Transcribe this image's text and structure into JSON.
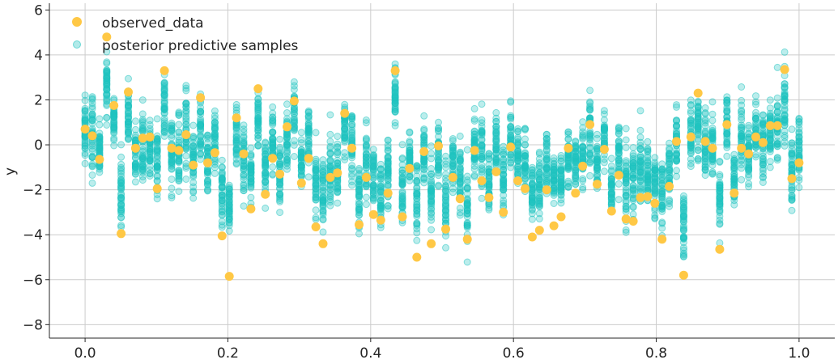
{
  "chart_data": {
    "type": "scatter",
    "title": "",
    "xlabel": "",
    "ylabel": "y",
    "xlim": [
      -0.05,
      1.05
    ],
    "ylim": [
      -8.6,
      6.3
    ],
    "xticks": [
      0.0,
      0.2,
      0.4,
      0.6,
      0.8,
      1.0
    ],
    "xtick_labels": [
      "0.0",
      "0.2",
      "0.4",
      "0.6",
      "0.8",
      "1.0"
    ],
    "yticks": [
      -8,
      -6,
      -4,
      -2,
      0,
      2,
      4,
      6
    ],
    "ytick_labels": [
      "−8",
      "−6",
      "−4",
      "−2",
      "0",
      "2",
      "4",
      "6"
    ],
    "grid": true,
    "legend_position": "top-left",
    "colors": {
      "observed": "#ffc845",
      "samples": "#1fc4c0"
    },
    "series": [
      {
        "name": "observed_data",
        "x": [
          0.0,
          0.0101,
          0.0202,
          0.0303,
          0.0404,
          0.0505,
          0.0606,
          0.0707,
          0.0808,
          0.0909,
          0.101,
          0.1111,
          0.1212,
          0.1313,
          0.1414,
          0.1515,
          0.1616,
          0.1717,
          0.1818,
          0.1919,
          0.202,
          0.2121,
          0.2222,
          0.2323,
          0.2424,
          0.2525,
          0.2626,
          0.2727,
          0.2828,
          0.2929,
          0.303,
          0.3131,
          0.3232,
          0.3333,
          0.3434,
          0.3535,
          0.3636,
          0.3737,
          0.3838,
          0.3939,
          0.404,
          0.4141,
          0.4242,
          0.4343,
          0.4444,
          0.4545,
          0.4646,
          0.4747,
          0.4848,
          0.4949,
          0.5051,
          0.5152,
          0.5253,
          0.5354,
          0.5455,
          0.5556,
          0.5657,
          0.5758,
          0.5859,
          0.596,
          0.6061,
          0.6162,
          0.6263,
          0.6364,
          0.6465,
          0.6566,
          0.6667,
          0.6768,
          0.6869,
          0.697,
          0.7071,
          0.7172,
          0.7273,
          0.7374,
          0.7475,
          0.7576,
          0.7677,
          0.7778,
          0.7879,
          0.798,
          0.8081,
          0.8182,
          0.8283,
          0.8384,
          0.8485,
          0.8586,
          0.8687,
          0.8788,
          0.8889,
          0.899,
          0.9091,
          0.9192,
          0.9293,
          0.9394,
          0.9495,
          0.9596,
          0.9697,
          0.9798,
          0.9899,
          1.0
        ],
        "y": [
          0.7,
          0.4,
          -0.65,
          4.8,
          1.75,
          -3.95,
          2.35,
          -0.15,
          0.3,
          0.35,
          -1.95,
          3.3,
          -0.15,
          -0.25,
          0.45,
          -0.9,
          2.1,
          -0.8,
          -0.35,
          -4.05,
          -5.85,
          1.2,
          -0.4,
          -2.85,
          2.5,
          -2.2,
          -0.6,
          -1.3,
          0.8,
          1.95,
          -1.7,
          -0.6,
          -3.65,
          -4.4,
          -1.45,
          -1.25,
          1.4,
          -0.15,
          -3.55,
          -1.45,
          -3.1,
          -3.35,
          -2.15,
          3.3,
          -3.2,
          -1.05,
          -5.0,
          -0.3,
          -4.4,
          -0.05,
          -3.75,
          -1.45,
          -2.4,
          -4.2,
          -0.25,
          -1.6,
          -2.35,
          -1.2,
          -3.0,
          -0.1,
          -1.6,
          -1.95,
          -4.1,
          -3.8,
          -2.0,
          -3.6,
          -3.2,
          -0.15,
          -2.15,
          -0.95,
          0.9,
          -1.75,
          -0.2,
          -2.95,
          -1.35,
          -3.3,
          -3.4,
          -2.35,
          -2.3,
          -2.6,
          -4.2,
          -1.85,
          0.15,
          -5.8,
          0.35,
          2.3,
          0.15,
          -0.15,
          -4.65,
          0.9,
          -2.15,
          -0.15,
          -0.4,
          0.35,
          0.1,
          0.85,
          0.85,
          3.35,
          -1.5,
          -0.8
        ]
      },
      {
        "name": "posterior predictive samples"
      }
    ]
  }
}
